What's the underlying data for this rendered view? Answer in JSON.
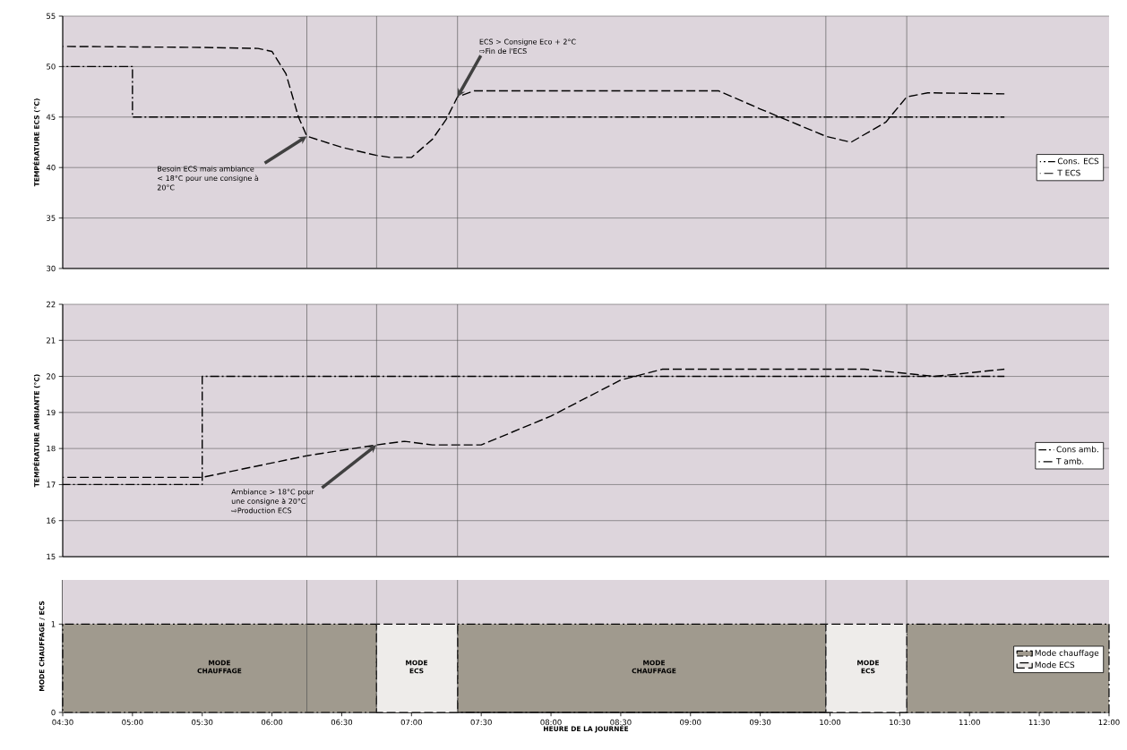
{
  "chart_data": [
    {
      "type": "line",
      "ylabel": "TEMPÉRATURE ECS (°C)",
      "xlim": [
        4.5,
        12
      ],
      "ylim": [
        30,
        55
      ],
      "yticks": [
        30,
        35,
        40,
        45,
        50,
        55
      ],
      "grid": "y",
      "legend": "right",
      "tick_labels": "y",
      "series": [
        {
          "name": "Cons. ECS",
          "color": "#000000",
          "line_style": "dashdot",
          "x": [
            4.5,
            5,
            5,
            11.25
          ],
          "values": [
            50,
            50,
            45,
            45
          ]
        },
        {
          "name": "T ECS",
          "color": "#000000",
          "line_style": "dashed",
          "x": [
            4.5,
            5.5,
            5.9,
            6.0,
            6.1,
            6.19,
            6.25,
            6.5,
            6.75,
            6.85,
            7.0,
            7.15,
            7.25,
            7.33,
            7.45,
            9.2,
            9.5,
            9.97,
            10.15,
            10.4,
            10.55,
            10.7,
            11.25
          ],
          "values": [
            52,
            51.9,
            51.8,
            51.5,
            49.3,
            45,
            43.1,
            42,
            41.2,
            41,
            41,
            42.8,
            44.8,
            47,
            47.6,
            47.6,
            45.8,
            43.1,
            42.5,
            44.5,
            47,
            47.4,
            47.3
          ]
        }
      ],
      "ref_lines": [
        {
          "axis": "x",
          "value": 6.25
        },
        {
          "axis": "x",
          "value": 6.75
        },
        {
          "axis": "x",
          "value": 7.33
        },
        {
          "axis": "x",
          "value": 9.97
        },
        {
          "axis": "x",
          "value": 10.55
        }
      ],
      "annotations": [
        {
          "text": "Besoin ECS mais ambiance < 18°C pour une consigne à 20°C",
          "x": 6.25,
          "y": 43.1
        },
        {
          "text": "ECS > Consigne Eco + 2°C ⇨Fin de l'ECS",
          "x": 7.33,
          "y": 47
        }
      ]
    },
    {
      "type": "line",
      "ylabel": "TEMPÉRATURE AMBIANTE (°C)",
      "xlim": [
        4.5,
        12
      ],
      "ylim": [
        15,
        22
      ],
      "yticks": [
        15,
        16,
        17,
        18,
        19,
        20,
        21,
        22
      ],
      "grid": "y",
      "legend": "right",
      "tick_labels": "y",
      "series": [
        {
          "name": "Cons amb.",
          "color": "#000000",
          "line_style": "dashdot",
          "x": [
            4.5,
            5.5,
            5.5,
            11.25
          ],
          "values": [
            17,
            17,
            20,
            20
          ]
        },
        {
          "name": "T amb.",
          "color": "#000000",
          "line_style": "dashed",
          "x": [
            4.5,
            5.5,
            6.25,
            6.75,
            6.95,
            7.15,
            7.5,
            8.0,
            8.5,
            8.8,
            10.25,
            10.5,
            10.75,
            11.25
          ],
          "values": [
            17.2,
            17.2,
            17.8,
            18.1,
            18.2,
            18.1,
            18.1,
            18.9,
            19.9,
            20.2,
            20.2,
            20.1,
            20.0,
            20.2
          ]
        }
      ],
      "ref_lines": [
        {
          "axis": "x",
          "value": 6.25
        },
        {
          "axis": "x",
          "value": 6.75
        },
        {
          "axis": "x",
          "value": 7.33
        },
        {
          "axis": "x",
          "value": 9.97
        },
        {
          "axis": "x",
          "value": 10.55
        }
      ],
      "annotations": [
        {
          "text": "Ambiance > 18°C pour une consigne à 20°C ⇨Production ECS",
          "x": 6.75,
          "y": 18.1
        }
      ]
    },
    {
      "type": "area",
      "ylabel": "MODE CHAUFFAGE / ECS",
      "xlabel": "HEURE DE LA JOURNÉE",
      "xlim": [
        4.5,
        12
      ],
      "xticks": [
        {
          "value": 4.5,
          "label": "04:30"
        },
        {
          "value": 5,
          "label": "05:00"
        },
        {
          "value": 5.5,
          "label": "05:30"
        },
        {
          "value": 6,
          "label": "06:00"
        },
        {
          "value": 6.5,
          "label": "06:30"
        },
        {
          "value": 7,
          "label": "07:00"
        },
        {
          "value": 7.5,
          "label": "07:30"
        },
        {
          "value": 8,
          "label": "08:00"
        },
        {
          "value": 8.5,
          "label": "08:30"
        },
        {
          "value": 9,
          "label": "09:00"
        },
        {
          "value": 9.5,
          "label": "09:30"
        },
        {
          "value": 10,
          "label": "10:00"
        },
        {
          "value": 10.5,
          "label": "10:30"
        },
        {
          "value": 11,
          "label": "11:00"
        },
        {
          "value": 11.5,
          "label": "11:30"
        },
        {
          "value": 12,
          "label": "12:00"
        }
      ],
      "ylim": [
        0,
        1.5
      ],
      "yticks": [
        0,
        1
      ],
      "legend": "right",
      "series": [
        {
          "name": "Mode chauffage",
          "color": "#a09a8e",
          "line_style": "dashdot",
          "x": [
            4.5,
            6.75,
            6.75,
            7.33,
            7.33,
            9.97,
            9.97,
            10.55,
            10.55,
            12
          ],
          "values": [
            1,
            1,
            0,
            0,
            1,
            1,
            0,
            0,
            1,
            1
          ]
        },
        {
          "name": "Mode ECS",
          "color": "#eeecea",
          "line_style": "dashed",
          "x": [
            6.75,
            6.75,
            7.33,
            7.33,
            9.97,
            9.97,
            10.55,
            10.55
          ],
          "values": [
            0,
            1,
            1,
            0,
            0,
            1,
            1,
            0
          ]
        }
      ],
      "ref_lines": [
        {
          "axis": "x",
          "value": 6.25
        },
        {
          "axis": "x",
          "value": 6.75
        },
        {
          "axis": "x",
          "value": 7.33
        },
        {
          "axis": "x",
          "value": 9.97
        },
        {
          "axis": "x",
          "value": 10.55
        }
      ],
      "bands": [
        {
          "axis": "y",
          "from": 1,
          "to": 1.5,
          "color": "#ddd5dc"
        }
      ],
      "annotations": [
        "MODE CHAUFFAGE",
        "MODE ECS",
        "MODE CHAUFFAGE",
        "MODE ECS"
      ]
    }
  ]
}
